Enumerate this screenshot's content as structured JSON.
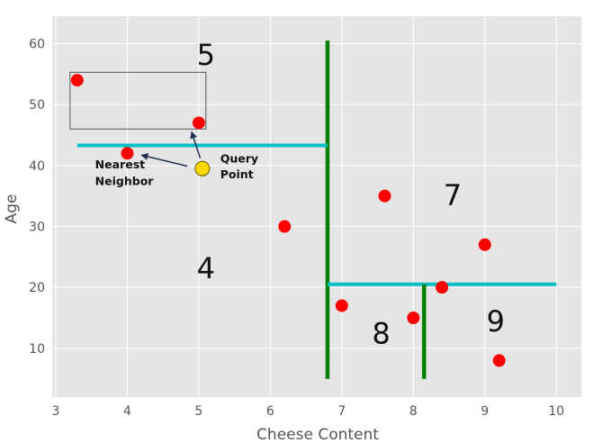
{
  "chart_data": {
    "type": "scatter",
    "title": "",
    "xlabel": "Cheese Content",
    "ylabel": "Age",
    "xlim": [
      2.95,
      10.35
    ],
    "ylim": [
      2,
      64.5
    ],
    "xticks": [
      3,
      4,
      5,
      6,
      7,
      8,
      9,
      10
    ],
    "yticks": [
      10,
      20,
      30,
      40,
      50,
      60
    ],
    "grid": true,
    "colors": {
      "background": "#e5e5e5",
      "grid": "#ffffff",
      "point": "#ff0000",
      "query_point": "#ffd700",
      "vertical_split": "#008000",
      "horizontal_split": "#00bfc4",
      "box": "#333333",
      "arrow": "#1f2f4f"
    },
    "points": [
      {
        "x": 3.3,
        "y": 54
      },
      {
        "x": 5.0,
        "y": 47
      },
      {
        "x": 4.0,
        "y": 42
      },
      {
        "x": 6.2,
        "y": 30
      },
      {
        "x": 7.6,
        "y": 35
      },
      {
        "x": 9.0,
        "y": 27
      },
      {
        "x": 8.4,
        "y": 20
      },
      {
        "x": 7.0,
        "y": 17
      },
      {
        "x": 8.0,
        "y": 15
      },
      {
        "x": 9.2,
        "y": 8
      }
    ],
    "query_point": {
      "x": 5.05,
      "y": 39.5
    },
    "splits": [
      {
        "orientation": "vertical",
        "at": 6.8,
        "from": 5,
        "to": 60.5
      },
      {
        "orientation": "horizontal",
        "at": 43.3,
        "from": 3.3,
        "to": 6.8
      },
      {
        "orientation": "horizontal",
        "at": 20.5,
        "from": 6.8,
        "to": 10.0
      },
      {
        "orientation": "vertical",
        "at": 8.15,
        "from": 5,
        "to": 20.5
      }
    ],
    "search_box": {
      "x0": 3.2,
      "x1": 5.1,
      "y0": 46,
      "y1": 55.3
    },
    "regions": [
      {
        "label": "5",
        "x": 5.1,
        "y": 56.5
      },
      {
        "label": "4",
        "x": 5.1,
        "y": 21.5
      },
      {
        "label": "7",
        "x": 8.55,
        "y": 33.5
      },
      {
        "label": "8",
        "x": 7.55,
        "y": 10.8
      },
      {
        "label": "9",
        "x": 9.15,
        "y": 12.8
      }
    ],
    "annotations": [
      {
        "text": "Query",
        "x": 5.3,
        "y": 40.5
      },
      {
        "text": "Point",
        "x": 5.3,
        "y": 37.9
      },
      {
        "text": "Nearest",
        "x": 3.55,
        "y": 39.5
      },
      {
        "text": "Neighbor",
        "x": 3.55,
        "y": 36.8
      }
    ],
    "arrows": [
      {
        "from": [
          5.02,
          41.2
        ],
        "to": [
          4.9,
          45.5
        ]
      },
      {
        "from": [
          4.84,
          39.9
        ],
        "to": [
          4.2,
          41.7
        ]
      }
    ]
  }
}
